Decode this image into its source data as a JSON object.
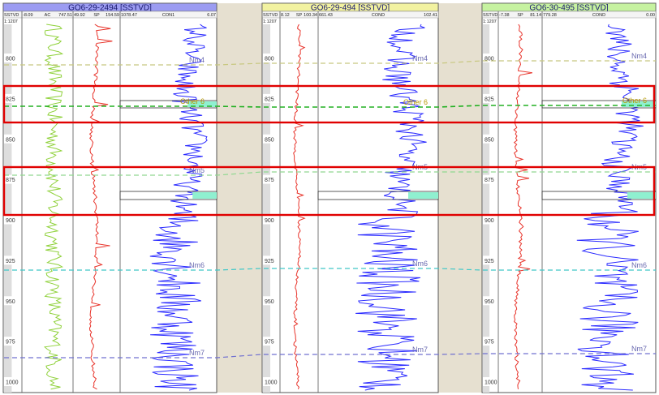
{
  "wells": [
    {
      "title": "GO6-29-2494 [SSTVD]",
      "scale": "1:1207",
      "header_color": "#9c9cf2",
      "tracks": [
        {
          "name": "SSTVD",
          "curves": []
        },
        {
          "name": "AC",
          "min": "-8.09",
          "max": "747.51"
        },
        {
          "name": "SP",
          "min": "49.92",
          "max": "154.59"
        },
        {
          "name": "CON1",
          "min": "1078.47",
          "max": "6.07"
        }
      ]
    },
    {
      "title": "GO6-29-494 [SSTVD]",
      "scale": "1:1207",
      "header_color": "#f2f2a0",
      "tracks": [
        {
          "name": "SSTVD",
          "curves": []
        },
        {
          "name": "SP",
          "min": "8.12",
          "max": "100.34"
        },
        {
          "name": "COND",
          "min": "661.43",
          "max": "102.41"
        }
      ]
    },
    {
      "title": "GO6-30-495 [SSTVD]",
      "scale": "1:1207",
      "header_color": "#c6f2a0",
      "tracks": [
        {
          "name": "SSTVD",
          "curves": []
        },
        {
          "name": "SP",
          "min": "-7.38",
          "max": "81.14"
        },
        {
          "name": "COND",
          "min": "779.28",
          "max": "0.00"
        }
      ]
    }
  ],
  "depth_ticks": [
    "800",
    "825",
    "850",
    "875",
    "900",
    "925",
    "950",
    "975",
    "1000"
  ],
  "markers": [
    {
      "name": "Nm4",
      "color": "#c8c880"
    },
    {
      "name": "Other 6",
      "color": "#22b022"
    },
    {
      "name": "Nm5",
      "color": "#90d890"
    },
    {
      "name": "Nm6",
      "color": "#40c8c8"
    },
    {
      "name": "Nm7",
      "color": "#7070d0"
    }
  ],
  "colors": {
    "ac_curve": "#8fd13a",
    "sp_curve": "#e8332a",
    "cond_curve": "#2a2aff",
    "highlight_box": "#e00000",
    "gap_fill": "#e6e0d0",
    "sand_fill": "#8ff0d0",
    "header_line": "#cfcfcf"
  }
}
